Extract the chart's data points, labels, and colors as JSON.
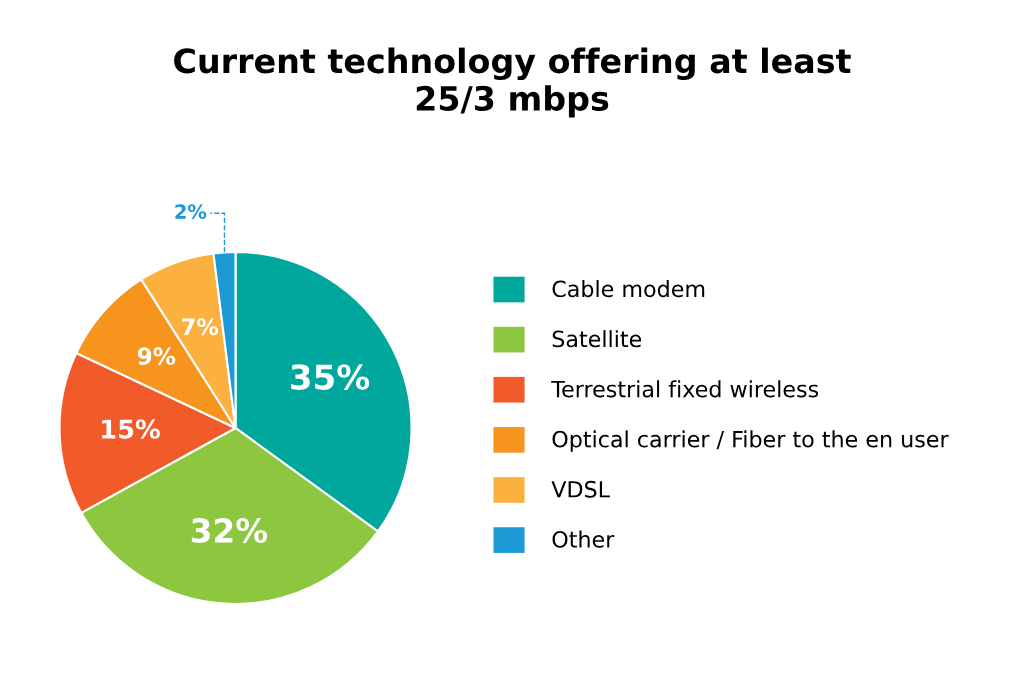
{
  "chart_data": {
    "type": "pie",
    "title": "Current technology offering at least\n25/3 mbps",
    "categories": [
      "Cable modem",
      "Satellite",
      "Terrestrial fixed wireless",
      "Optical carrier / Fiber to the en user",
      "VDSL",
      "Other"
    ],
    "values": [
      35,
      32,
      15,
      9,
      7,
      2
    ],
    "value_labels": [
      "35%",
      "32%",
      "15%",
      "9%",
      "7%",
      "2%"
    ],
    "colors": [
      "#00a79d",
      "#8dc63f",
      "#f15a29",
      "#f7941d",
      "#fbb040",
      "#1b9ad6"
    ],
    "legend": "right"
  }
}
